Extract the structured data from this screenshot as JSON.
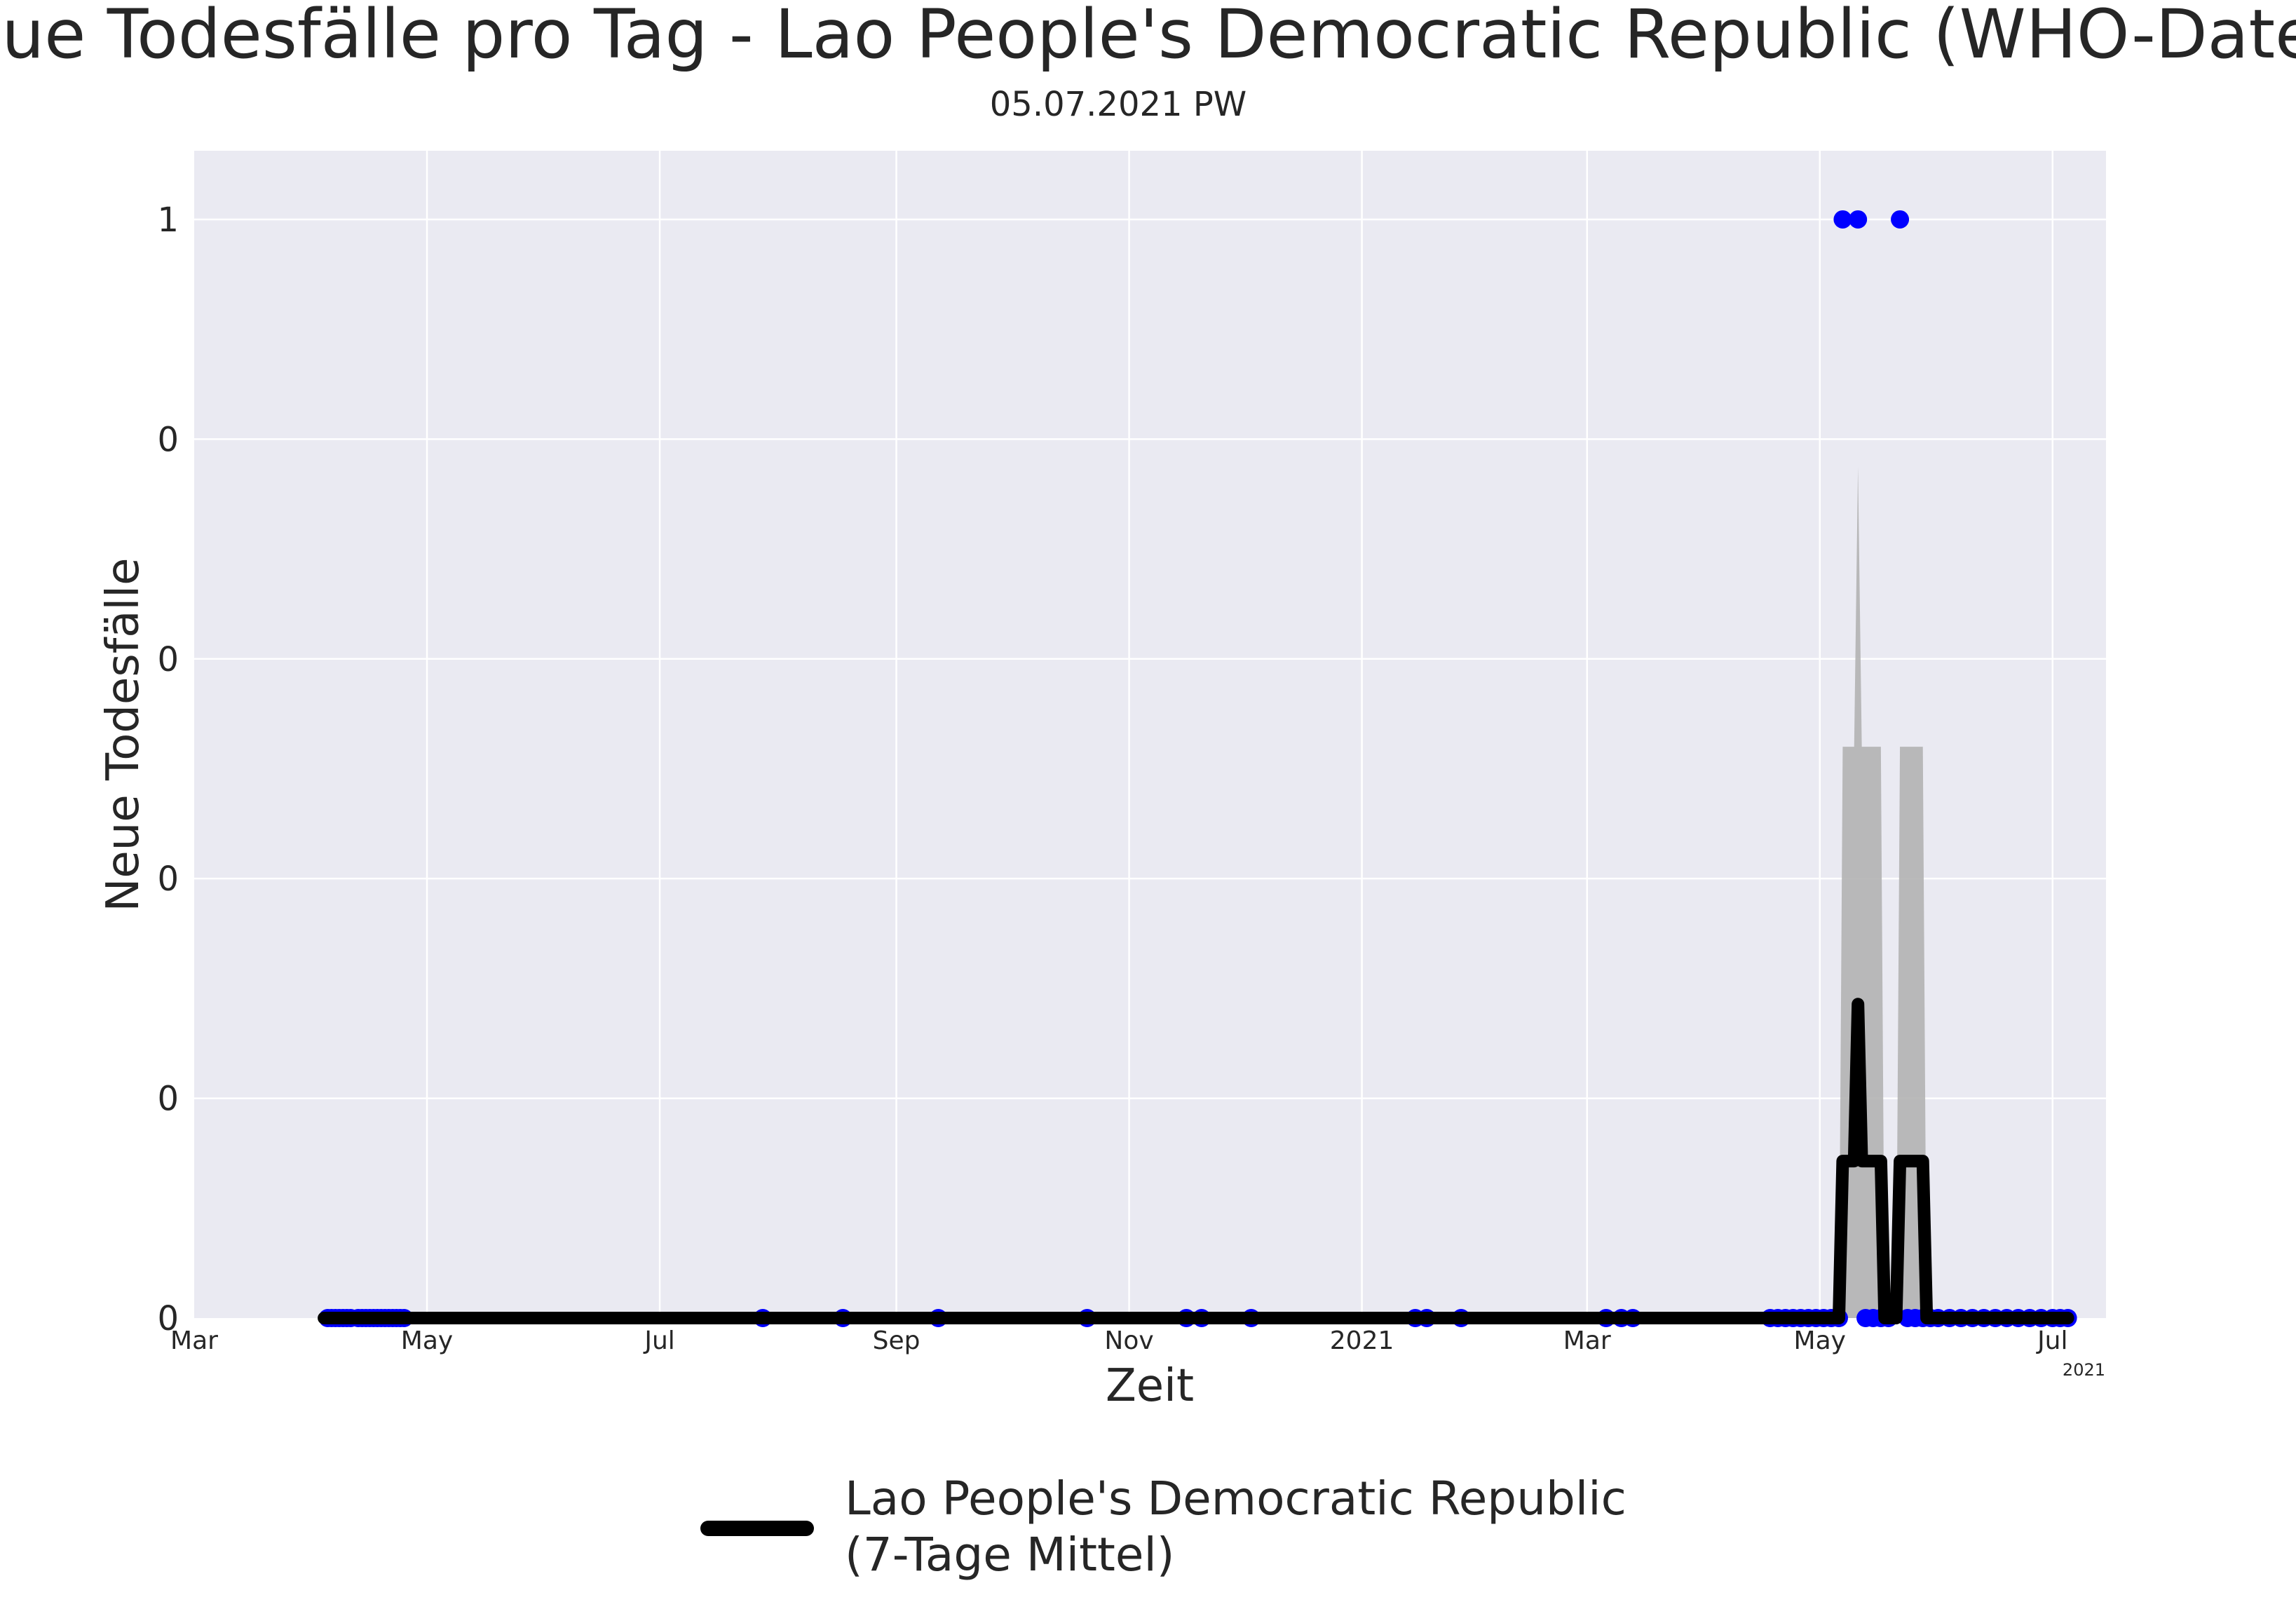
{
  "chart_data": {
    "type": "line",
    "title": "Neue Todesfälle pro Tag - Lao People's Democratic Republic (WHO-Daten)",
    "subtitle": "05.07.2021 PW",
    "xlabel": "Zeit",
    "ylabel": "Neue Todesfälle",
    "x_tick_labels": [
      "Mar",
      "May",
      "Jul",
      "Sep",
      "Nov",
      "2021",
      "Mar",
      "May",
      "Jul"
    ],
    "x_offset_label": "2021",
    "y_tick_labels": [
      "0",
      "0",
      "0",
      "0",
      "0",
      "1"
    ],
    "y_ticks": [
      0,
      0.2,
      0.4,
      0.6,
      0.8,
      1.0
    ],
    "ylim": [
      0,
      1.0625
    ],
    "xlim": [
      "2020-03-01",
      "2021-07-15"
    ],
    "grid": true,
    "legend_position": "bottom-center",
    "colors": {
      "background": "#eaeaf2",
      "grid": "#ffffff",
      "line": "#000000",
      "points": "#0000ff",
      "band": "#b3b3b3"
    },
    "series": [
      {
        "name": "Lao People's Democratic Republic\n(7-Tage Mittel)",
        "kind": "line",
        "points": [
          {
            "x": "2020-04-04",
            "y": 0
          },
          {
            "x": "2021-05-06",
            "y": 0
          },
          {
            "x": "2021-05-07",
            "y": 0.1429
          },
          {
            "x": "2021-05-08",
            "y": 0.1429
          },
          {
            "x": "2021-05-09",
            "y": 0.1429
          },
          {
            "x": "2021-05-10",
            "y": 0.1429
          },
          {
            "x": "2021-05-11",
            "y": 0.2857
          },
          {
            "x": "2021-05-12",
            "y": 0.1429
          },
          {
            "x": "2021-05-13",
            "y": 0.1429
          },
          {
            "x": "2021-05-14",
            "y": 0.1429
          },
          {
            "x": "2021-05-15",
            "y": 0.1429
          },
          {
            "x": "2021-05-16",
            "y": 0.1429
          },
          {
            "x": "2021-05-17",
            "y": 0.1429
          },
          {
            "x": "2021-05-18",
            "y": 0
          },
          {
            "x": "2021-05-19",
            "y": 0
          },
          {
            "x": "2021-05-20",
            "y": 0
          },
          {
            "x": "2021-05-21",
            "y": 0
          },
          {
            "x": "2021-05-22",
            "y": 0.1429
          },
          {
            "x": "2021-05-23",
            "y": 0.1429
          },
          {
            "x": "2021-05-24",
            "y": 0.1429
          },
          {
            "x": "2021-05-25",
            "y": 0.1429
          },
          {
            "x": "2021-05-26",
            "y": 0.1429
          },
          {
            "x": "2021-05-27",
            "y": 0.1429
          },
          {
            "x": "2021-05-28",
            "y": 0.1429
          },
          {
            "x": "2021-05-29",
            "y": 0
          },
          {
            "x": "2021-07-05",
            "y": 0
          }
        ]
      },
      {
        "name": "",
        "kind": "band",
        "points": [
          {
            "x": "2021-05-06",
            "y": 0
          },
          {
            "x": "2021-05-07",
            "y": 0.52
          },
          {
            "x": "2021-05-10",
            "y": 0.52
          },
          {
            "x": "2021-05-11",
            "y": 0.775
          },
          {
            "x": "2021-05-12",
            "y": 0.52
          },
          {
            "x": "2021-05-17",
            "y": 0.52
          },
          {
            "x": "2021-05-18",
            "y": 0
          },
          {
            "x": "2021-05-21",
            "y": 0
          },
          {
            "x": "2021-05-22",
            "y": 0.52
          },
          {
            "x": "2021-05-28",
            "y": 0.52
          },
          {
            "x": "2021-05-29",
            "y": 0
          }
        ]
      },
      {
        "name": "",
        "kind": "points",
        "points": [
          {
            "x": "2020-04-05",
            "y": 0
          },
          {
            "x": "2020-04-06",
            "y": 0
          },
          {
            "x": "2020-04-07",
            "y": 0
          },
          {
            "x": "2020-04-08",
            "y": 0
          },
          {
            "x": "2020-04-09",
            "y": 0
          },
          {
            "x": "2020-04-10",
            "y": 0
          },
          {
            "x": "2020-04-11",
            "y": 0
          },
          {
            "x": "2020-04-13",
            "y": 0
          },
          {
            "x": "2020-04-14",
            "y": 0
          },
          {
            "x": "2020-04-15",
            "y": 0
          },
          {
            "x": "2020-04-16",
            "y": 0
          },
          {
            "x": "2020-04-17",
            "y": 0
          },
          {
            "x": "2020-04-18",
            "y": 0
          },
          {
            "x": "2020-04-19",
            "y": 0
          },
          {
            "x": "2020-04-20",
            "y": 0
          },
          {
            "x": "2020-04-21",
            "y": 0
          },
          {
            "x": "2020-04-22",
            "y": 0
          },
          {
            "x": "2020-04-23",
            "y": 0
          },
          {
            "x": "2020-04-24",
            "y": 0
          },
          {
            "x": "2020-04-25",
            "y": 0
          },
          {
            "x": "2020-07-28",
            "y": 0
          },
          {
            "x": "2020-08-18",
            "y": 0
          },
          {
            "x": "2020-09-12",
            "y": 0
          },
          {
            "x": "2020-10-21",
            "y": 0
          },
          {
            "x": "2020-11-16",
            "y": 0
          },
          {
            "x": "2020-11-20",
            "y": 0
          },
          {
            "x": "2020-12-03",
            "y": 0
          },
          {
            "x": "2021-01-15",
            "y": 0
          },
          {
            "x": "2021-01-18",
            "y": 0
          },
          {
            "x": "2021-01-27",
            "y": 0
          },
          {
            "x": "2021-03-06",
            "y": 0
          },
          {
            "x": "2021-03-10",
            "y": 0
          },
          {
            "x": "2021-03-13",
            "y": 0
          },
          {
            "x": "2021-04-18",
            "y": 0
          },
          {
            "x": "2021-04-20",
            "y": 0
          },
          {
            "x": "2021-04-22",
            "y": 0
          },
          {
            "x": "2021-04-24",
            "y": 0
          },
          {
            "x": "2021-04-26",
            "y": 0
          },
          {
            "x": "2021-04-28",
            "y": 0
          },
          {
            "x": "2021-04-30",
            "y": 0
          },
          {
            "x": "2021-05-02",
            "y": 0
          },
          {
            "x": "2021-05-04",
            "y": 0
          },
          {
            "x": "2021-05-06",
            "y": 0
          },
          {
            "x": "2021-05-07",
            "y": 1
          },
          {
            "x": "2021-05-11",
            "y": 1
          },
          {
            "x": "2021-05-13",
            "y": 0
          },
          {
            "x": "2021-05-15",
            "y": 0
          },
          {
            "x": "2021-05-17",
            "y": 0
          },
          {
            "x": "2021-05-19",
            "y": 0
          },
          {
            "x": "2021-05-22",
            "y": 1
          },
          {
            "x": "2021-05-24",
            "y": 0
          },
          {
            "x": "2021-05-26",
            "y": 0
          },
          {
            "x": "2021-05-28",
            "y": 0
          },
          {
            "x": "2021-05-30",
            "y": 0
          },
          {
            "x": "2021-06-01",
            "y": 0
          },
          {
            "x": "2021-06-04",
            "y": 0
          },
          {
            "x": "2021-06-07",
            "y": 0
          },
          {
            "x": "2021-06-10",
            "y": 0
          },
          {
            "x": "2021-06-13",
            "y": 0
          },
          {
            "x": "2021-06-16",
            "y": 0
          },
          {
            "x": "2021-06-19",
            "y": 0
          },
          {
            "x": "2021-06-22",
            "y": 0
          },
          {
            "x": "2021-06-25",
            "y": 0
          },
          {
            "x": "2021-06-28",
            "y": 0
          },
          {
            "x": "2021-07-01",
            "y": 0
          },
          {
            "x": "2021-07-03",
            "y": 0
          },
          {
            "x": "2021-07-05",
            "y": 0
          }
        ]
      }
    ]
  }
}
